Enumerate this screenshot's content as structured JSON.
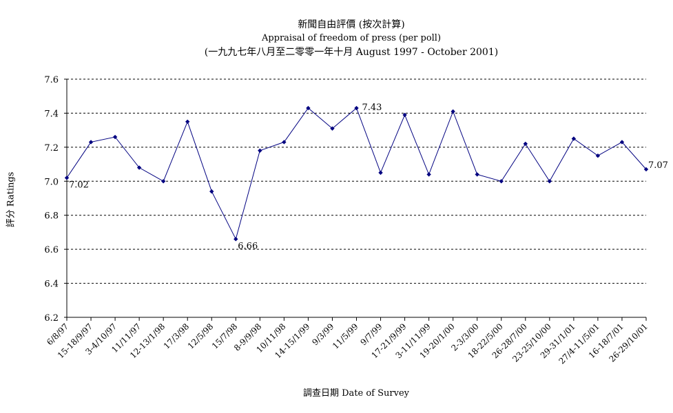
{
  "chart_data": {
    "type": "line",
    "title": "新聞自由評價 (按次計算)",
    "subtitle": "Appraisal of freedom of press (per poll)",
    "period": "(一九九七年八月至二零零一年十月 August 1997 - October 2001)",
    "xlabel": "調查日期 Date of Survey",
    "ylabel": "評分 Ratings",
    "ylim": [
      6.2,
      7.6
    ],
    "yticks": [
      "6.2",
      "6.4",
      "6.6",
      "6.8",
      "7.0",
      "7.2",
      "7.4",
      "7.6"
    ],
    "grid": true,
    "grid_style": "dashed",
    "marker": "diamond",
    "line_color": "#000080",
    "marker_color": "#000080",
    "categories": [
      "6/8/97",
      "15-18/9/97",
      "3-4/10/97",
      "11/11/97",
      "12-13/1/98",
      "17/3/98",
      "12/5/98",
      "15/7/98",
      "8-9/9/98",
      "10/11/98",
      "14-15/1/99",
      "9/3/99",
      "11/5/99",
      "9/7/99",
      "17-21/9/99",
      "3-11/11/99",
      "19-20/1/00",
      "2-3/3/00",
      "18-22/5/00",
      "26-28/7/00",
      "23-25/10/00",
      "29-31/1/01",
      "27/4-11/5/01",
      "16-18/7/01",
      "26-29/10/01"
    ],
    "values": [
      7.02,
      7.23,
      7.26,
      7.08,
      7.0,
      7.35,
      6.94,
      6.66,
      7.18,
      7.23,
      7.43,
      7.31,
      7.43,
      7.05,
      7.39,
      7.04,
      7.41,
      7.04,
      7.0,
      7.22,
      7.0,
      7.25,
      7.15,
      7.23,
      7.07
    ],
    "data_labels": [
      {
        "index": 0,
        "text": "7.02"
      },
      {
        "index": 7,
        "text": "6.66"
      },
      {
        "index": 12,
        "text": "7.43"
      },
      {
        "index": 24,
        "text": "7.07"
      }
    ]
  }
}
